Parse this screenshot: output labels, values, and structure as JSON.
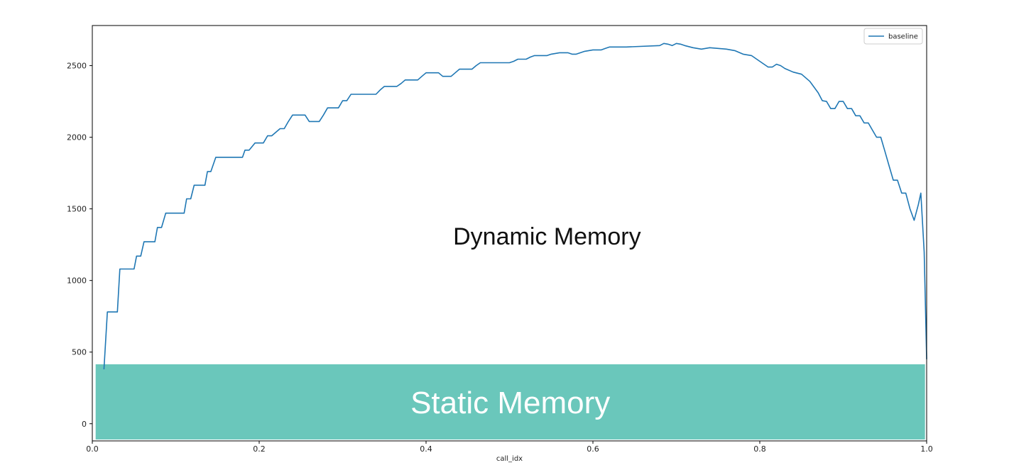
{
  "chart_data": {
    "type": "line",
    "xlabel": "call_idx",
    "ylabel": "",
    "title": "",
    "xlim": [
      0.0,
      1.0
    ],
    "ylim": [
      -120,
      2780
    ],
    "x_ticks": [
      0.0,
      0.2,
      0.4,
      0.6,
      0.8,
      1.0
    ],
    "x_tick_labels": [
      "0.0",
      "0.2",
      "0.4",
      "0.6",
      "0.8",
      "1.0"
    ],
    "y_ticks": [
      0,
      500,
      1000,
      1500,
      2000,
      2500
    ],
    "y_tick_labels": [
      "0",
      "500",
      "1000",
      "1500",
      "2000",
      "2500"
    ],
    "grid": false,
    "legend": {
      "position": "top-right",
      "entries": [
        "baseline"
      ]
    },
    "series": [
      {
        "name": "baseline",
        "color": "#1f77b4",
        "x": [
          0.014,
          0.018,
          0.018,
          0.03,
          0.033,
          0.037,
          0.05,
          0.053,
          0.058,
          0.062,
          0.075,
          0.078,
          0.083,
          0.088,
          0.11,
          0.113,
          0.118,
          0.122,
          0.135,
          0.138,
          0.142,
          0.148,
          0.18,
          0.183,
          0.188,
          0.195,
          0.205,
          0.21,
          0.215,
          0.225,
          0.23,
          0.235,
          0.24,
          0.255,
          0.26,
          0.272,
          0.277,
          0.282,
          0.295,
          0.3,
          0.305,
          0.31,
          0.34,
          0.345,
          0.35,
          0.365,
          0.37,
          0.375,
          0.39,
          0.395,
          0.4,
          0.415,
          0.42,
          0.43,
          0.435,
          0.44,
          0.455,
          0.46,
          0.465,
          0.5,
          0.505,
          0.51,
          0.52,
          0.525,
          0.53,
          0.545,
          0.55,
          0.56,
          0.57,
          0.575,
          0.58,
          0.59,
          0.6,
          0.61,
          0.615,
          0.62,
          0.63,
          0.64,
          0.68,
          0.685,
          0.69,
          0.695,
          0.7,
          0.705,
          0.71,
          0.72,
          0.73,
          0.74,
          0.75,
          0.76,
          0.77,
          0.78,
          0.79,
          0.8,
          0.81,
          0.815,
          0.82,
          0.825,
          0.83,
          0.84,
          0.85,
          0.86,
          0.87,
          0.875,
          0.88,
          0.885,
          0.89,
          0.895,
          0.9,
          0.905,
          0.91,
          0.915,
          0.92,
          0.925,
          0.93,
          0.935,
          0.94,
          0.945,
          0.95,
          0.955,
          0.96,
          0.965,
          0.97,
          0.975,
          0.98,
          0.985,
          0.99,
          0.993,
          0.997,
          1.0
        ],
        "y": [
          380,
          780,
          780,
          780,
          1080,
          1080,
          1080,
          1170,
          1170,
          1270,
          1270,
          1370,
          1370,
          1470,
          1470,
          1570,
          1570,
          1665,
          1665,
          1760,
          1760,
          1860,
          1860,
          1910,
          1910,
          1960,
          1960,
          2010,
          2010,
          2060,
          2060,
          2110,
          2155,
          2155,
          2110,
          2110,
          2155,
          2205,
          2205,
          2255,
          2255,
          2300,
          2300,
          2330,
          2355,
          2355,
          2375,
          2400,
          2400,
          2425,
          2450,
          2450,
          2425,
          2425,
          2450,
          2475,
          2475,
          2500,
          2520,
          2520,
          2530,
          2545,
          2545,
          2560,
          2570,
          2570,
          2580,
          2590,
          2590,
          2580,
          2580,
          2600,
          2610,
          2610,
          2620,
          2630,
          2630,
          2630,
          2640,
          2655,
          2650,
          2640,
          2655,
          2650,
          2640,
          2625,
          2615,
          2625,
          2620,
          2615,
          2605,
          2580,
          2570,
          2530,
          2490,
          2490,
          2510,
          2500,
          2480,
          2455,
          2440,
          2390,
          2310,
          2255,
          2250,
          2200,
          2200,
          2250,
          2250,
          2200,
          2200,
          2150,
          2150,
          2100,
          2100,
          2050,
          2000,
          2000,
          1900,
          1800,
          1700,
          1700,
          1610,
          1610,
          1500,
          1420,
          1530,
          1610,
          1200,
          450
        ]
      }
    ],
    "regions": [
      {
        "label": "Static Memory",
        "color": "#6ac7bb",
        "x_range": [
          0.004,
          0.998
        ],
        "y_range": [
          -110,
          415
        ]
      }
    ],
    "annotations": [
      {
        "text": "Dynamic Memory",
        "x": 0.545,
        "y": 1250
      }
    ]
  }
}
